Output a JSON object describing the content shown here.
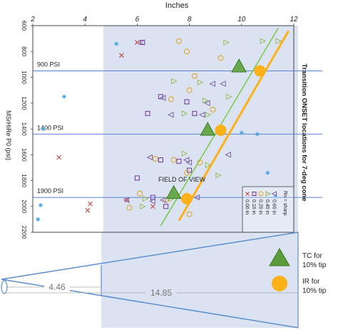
{
  "chart_data": {
    "type": "scatter",
    "title": "",
    "side_title": "Transition ONSET locations for 7-deg cone",
    "xlabel": "Inches",
    "ylabel": "MSrHiRe P0 (psi)",
    "xlim": [
      2,
      12
    ],
    "ylim": [
      2200,
      600
    ],
    "x_ticks": [
      "2",
      "4",
      "6",
      "8",
      "10",
      "12"
    ],
    "y_ticks": [
      "600",
      "800",
      "1000",
      "1200",
      "1400",
      "1600",
      "1800",
      "2000",
      "2200"
    ],
    "pressure_lines": [
      {
        "label": "900 PSI",
        "y": 950
      },
      {
        "label": "1400 PSI",
        "y": 1440
      },
      {
        "label": "1900 PSI",
        "y": 1930
      }
    ],
    "field_of_view": {
      "label": "FIELD OF VIEW",
      "x_start": 4.7,
      "x_end": 12.0
    },
    "tc_line": {
      "name": "TC for 10% tip",
      "color": "#7ac943",
      "points": [
        [
          6.9,
          2150
        ],
        [
          11.4,
          620
        ]
      ],
      "markers": [
        [
          9.9,
          920
        ],
        [
          8.7,
          1410
        ],
        [
          7.4,
          1900
        ]
      ]
    },
    "ir_line": {
      "name": "IR for 10% tip",
      "color": "#fbb117",
      "points": [
        [
          7.6,
          2110
        ],
        [
          11.8,
          640
        ]
      ],
      "markers": [
        [
          10.7,
          950
        ],
        [
          9.2,
          1410
        ],
        [
          7.9,
          1940
        ]
      ]
    },
    "series": [
      {
        "name": "0.00 in",
        "symbol": "x",
        "color": "#c0504d",
        "points": [
          [
            5.4,
            830
          ],
          [
            6.0,
            730
          ],
          [
            3.0,
            1620
          ],
          [
            4.1,
            2030
          ],
          [
            4.2,
            1980
          ],
          [
            5.6,
            1950
          ],
          [
            6.6,
            2000
          ]
        ]
      },
      {
        "name": "0.10 in",
        "symbol": "square",
        "color": "#7030a0",
        "points": [
          [
            6.2,
            730
          ],
          [
            6.9,
            1150
          ],
          [
            7.9,
            1190
          ],
          [
            8.2,
            1280
          ],
          [
            6.4,
            1280
          ],
          [
            6.9,
            1640
          ],
          [
            7.6,
            1650
          ],
          [
            8.0,
            1720
          ],
          [
            6.6,
            1930
          ],
          [
            7.1,
            2000
          ],
          [
            6.0,
            1780
          ]
        ]
      },
      {
        "name": "0.20 in",
        "symbol": "circle",
        "color": "#e0a31e",
        "points": [
          [
            7.6,
            720
          ],
          [
            7.9,
            800
          ],
          [
            9.2,
            850
          ],
          [
            8.2,
            990
          ],
          [
            8.0,
            1100
          ],
          [
            7.3,
            1170
          ],
          [
            8.9,
            1250
          ],
          [
            6.7,
            1630
          ],
          [
            7.4,
            1640
          ],
          [
            8.4,
            1660
          ],
          [
            7.9,
            1740
          ],
          [
            6.1,
            1900
          ],
          [
            5.7,
            2010
          ],
          [
            7.1,
            1950
          ],
          [
            8.0,
            2060
          ]
        ]
      },
      {
        "name": "0.40 in",
        "symbol": "triangle-right",
        "color": "#9bbb59",
        "points": [
          [
            9.4,
            730
          ],
          [
            10.8,
            720
          ],
          [
            11.4,
            720
          ],
          [
            7.4,
            1030
          ],
          [
            8.4,
            1040
          ],
          [
            8.6,
            1180
          ],
          [
            9.5,
            1150
          ],
          [
            7.8,
            1280
          ],
          [
            8.7,
            1290
          ],
          [
            7.8,
            1590
          ],
          [
            8.7,
            1680
          ],
          [
            9.1,
            1760
          ],
          [
            7.3,
            1940
          ],
          [
            6.2,
            2000
          ],
          [
            6.3,
            1940
          ]
        ]
      },
      {
        "name": "0.60 in",
        "symbol": "triangle-left",
        "color": "#8064a2",
        "points": [
          [
            6.2,
            730
          ],
          [
            8.9,
            1050
          ],
          [
            9.3,
            1050
          ],
          [
            7.0,
            1160
          ],
          [
            8.7,
            1200
          ],
          [
            7.3,
            1290
          ],
          [
            8.5,
            1290
          ],
          [
            6.5,
            1620
          ],
          [
            7.9,
            1640
          ],
          [
            8.0,
            1660
          ],
          [
            9.5,
            1600
          ],
          [
            7.0,
            1950
          ],
          [
            6.6,
            1960
          ],
          [
            8.3,
            1930
          ],
          [
            5.6,
            1950
          ]
        ]
      },
      {
        "name": "sharp",
        "symbol": "asterisk",
        "color": "#4aa3df",
        "points": [
          [
            5.2,
            740
          ],
          [
            10.0,
            1430
          ],
          [
            10.6,
            1440
          ],
          [
            11.0,
            1740
          ],
          [
            11.3,
            1920
          ],
          [
            3.2,
            1150
          ],
          [
            2.3,
            1990
          ],
          [
            2.2,
            2100
          ],
          [
            2.4,
            1400
          ]
        ]
      }
    ],
    "legend": {
      "title": "Rn = sharp",
      "placement": "bottom-right",
      "entries": [
        {
          "symbol": "x",
          "label": "0.00 in",
          "color": "#c0504d"
        },
        {
          "symbol": "square",
          "label": "0.10 in",
          "color": "#7030a0"
        },
        {
          "symbol": "circle",
          "label": "0.20 in",
          "color": "#e0a31e"
        },
        {
          "symbol": "triangle-right",
          "label": "0.40 in",
          "color": "#9bbb59"
        },
        {
          "symbol": "triangle-left",
          "label": "0.60 in",
          "color": "#8064a2"
        }
      ]
    },
    "side_legend": {
      "tc_label_line1": "TC for",
      "tc_label_line2": "10% tip",
      "ir_label_line1": "IR for",
      "ir_label_line2": "10% tip"
    },
    "cone_dims": {
      "inner": "4.46",
      "outer": "14.85"
    }
  },
  "colors": {
    "fov_fill": "#dbe3f3",
    "grid_line": "#5b7fd1",
    "cone_line": "#5b8fcd",
    "plot_border": "#444444"
  }
}
